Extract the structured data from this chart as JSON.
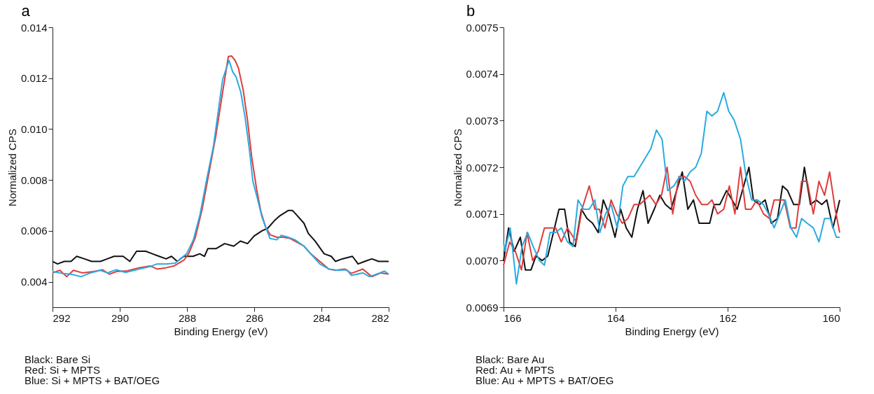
{
  "chart_data": [
    {
      "type": "line",
      "title": "a",
      "xlabel": "Binding Energy (eV)",
      "ylabel": "Normalized CPS",
      "xlim": [
        292,
        282
      ],
      "xticks": [
        292,
        290,
        288,
        286,
        284,
        282
      ],
      "ylim": [
        0.003,
        0.014
      ],
      "yticks": [
        0.004,
        0.006,
        0.008,
        {
          "value": 0.01,
          "label": "0.010"
        },
        0.012,
        0.014
      ],
      "grid": false,
      "legend": false,
      "line_style": "solid",
      "marker": "none",
      "annotations": [
        "Black: Bare Si",
        "Red: Si + MPTS",
        "Blue: Si + MPTS + BAT/OEG"
      ],
      "series": [
        {
          "color": "#111111",
          "x": [
            292.0,
            291.85,
            291.65,
            291.45,
            291.28,
            291.05,
            290.84,
            290.57,
            290.37,
            290.17,
            289.9,
            289.7,
            289.5,
            289.23,
            289.03,
            288.83,
            288.62,
            288.46,
            288.29,
            288.09,
            287.82,
            287.62,
            287.48,
            287.38,
            287.14,
            286.88,
            286.61,
            286.41,
            286.2,
            286.0,
            285.77,
            285.6,
            285.4,
            285.23,
            284.99,
            284.86,
            284.72,
            284.52,
            284.39,
            284.19,
            283.92,
            283.71,
            283.58,
            283.38,
            283.08,
            282.91,
            282.71,
            282.5,
            282.3,
            282.0
          ],
          "values": [
            0.0048,
            0.0047,
            0.0048,
            0.0048,
            0.005,
            0.0049,
            0.0048,
            0.0048,
            0.0049,
            0.005,
            0.005,
            0.0048,
            0.0052,
            0.0052,
            0.0051,
            0.005,
            0.0049,
            0.005,
            0.0048,
            0.005,
            0.005,
            0.0051,
            0.005,
            0.0053,
            0.0053,
            0.0055,
            0.0054,
            0.0056,
            0.0055,
            0.0058,
            0.006,
            0.0061,
            0.0064,
            0.0066,
            0.0068,
            0.0068,
            0.0066,
            0.0063,
            0.0059,
            0.0056,
            0.0051,
            0.005,
            0.0048,
            0.0049,
            0.005,
            0.0047,
            0.0048,
            0.0049,
            0.0048,
            0.0048
          ]
        },
        {
          "color": "#e03b3b",
          "x": [
            292.0,
            291.78,
            291.58,
            291.38,
            291.11,
            290.78,
            290.51,
            290.31,
            290.1,
            289.77,
            289.43,
            289.09,
            288.89,
            288.62,
            288.39,
            288.22,
            288.09,
            287.95,
            287.75,
            287.55,
            287.35,
            287.14,
            286.94,
            286.77,
            286.67,
            286.57,
            286.47,
            286.33,
            286.2,
            286.07,
            285.93,
            285.8,
            285.66,
            285.53,
            285.33,
            285.13,
            284.93,
            284.72,
            284.52,
            284.32,
            284.05,
            283.78,
            283.58,
            283.31,
            283.11,
            282.77,
            282.5,
            282.23,
            282.0
          ],
          "values": [
            0.00435,
            0.00445,
            0.0042,
            0.00445,
            0.00435,
            0.0044,
            0.00447,
            0.0043,
            0.0044,
            0.00443,
            0.00455,
            0.00462,
            0.0045,
            0.00455,
            0.00462,
            0.00475,
            0.00485,
            0.0051,
            0.00575,
            0.00685,
            0.00825,
            0.00975,
            0.01145,
            0.01285,
            0.01287,
            0.0127,
            0.0124,
            0.01155,
            0.01035,
            0.00885,
            0.00765,
            0.00675,
            0.00615,
            0.00585,
            0.00575,
            0.00575,
            0.0057,
            0.00555,
            0.0054,
            0.0051,
            0.0048,
            0.0045,
            0.00445,
            0.0045,
            0.00433,
            0.0045,
            0.0042,
            0.00435,
            0.0043
          ]
        },
        {
          "color": "#29abe2",
          "x": [
            292.0,
            291.72,
            291.45,
            291.15,
            290.91,
            290.58,
            290.37,
            290.1,
            289.83,
            289.43,
            289.09,
            288.89,
            288.62,
            288.35,
            288.15,
            288.01,
            287.81,
            287.61,
            287.41,
            287.21,
            286.94,
            286.75,
            286.64,
            286.54,
            286.4,
            286.27,
            286.14,
            286.04,
            285.9,
            285.77,
            285.66,
            285.53,
            285.33,
            285.19,
            284.99,
            284.79,
            284.52,
            284.25,
            284.05,
            283.78,
            283.51,
            283.24,
            283.11,
            282.77,
            282.57,
            282.3,
            282.13,
            282.0
          ],
          "values": [
            0.0044,
            0.00433,
            0.0043,
            0.0042,
            0.00433,
            0.00445,
            0.00435,
            0.00447,
            0.00437,
            0.0045,
            0.0046,
            0.0047,
            0.0047,
            0.00473,
            0.00495,
            0.0051,
            0.00565,
            0.00665,
            0.00805,
            0.00935,
            0.01195,
            0.0127,
            0.01225,
            0.01205,
            0.01145,
            0.01045,
            0.00915,
            0.00795,
            0.00725,
            0.00655,
            0.00615,
            0.0057,
            0.00565,
            0.00583,
            0.00575,
            0.00565,
            0.0054,
            0.005,
            0.0047,
            0.0045,
            0.00445,
            0.00447,
            0.00425,
            0.00435,
            0.0042,
            0.00433,
            0.00442,
            0.0043
          ]
        }
      ]
    },
    {
      "type": "line",
      "title": "b",
      "xlabel": "Binding Energy (eV)",
      "ylabel": "Normalized CPS",
      "xlim": [
        166,
        160
      ],
      "xticks": [
        166,
        164,
        162,
        160
      ],
      "ylim": [
        0.0069,
        0.0075
      ],
      "yticks": [
        0.0069,
        {
          "value": 0.007,
          "label": "0.0070"
        },
        0.0071,
        0.0072,
        0.0073,
        0.0074,
        0.0075
      ],
      "grid": false,
      "legend": false,
      "line_style": "solid",
      "marker": "none",
      "annotations": [
        "Black: Bare Au",
        "Red: Au + MPTS",
        "Blue: Au + MPTS + BAT/OEG"
      ],
      "series": [
        {
          "color": "#111111",
          "x": [
            166.0,
            165.91,
            165.81,
            165.7,
            165.61,
            165.51,
            165.42,
            165.31,
            165.21,
            165.11,
            165.01,
            164.91,
            164.82,
            164.72,
            164.61,
            164.51,
            164.41,
            164.31,
            164.22,
            164.12,
            164.01,
            163.91,
            163.81,
            163.71,
            163.61,
            163.51,
            163.42,
            163.31,
            163.21,
            163.11,
            163.01,
            162.81,
            162.71,
            162.61,
            162.51,
            162.41,
            162.32,
            162.24,
            162.14,
            162.02,
            161.92,
            161.83,
            161.62,
            161.54,
            161.43,
            161.33,
            161.22,
            161.11,
            161.02,
            160.93,
            160.82,
            160.72,
            160.63,
            160.52,
            160.42,
            160.32,
            160.23,
            160.12,
            160.0
          ],
          "values": [
            0.007,
            0.00707,
            0.00702,
            0.00705,
            0.00698,
            0.00698,
            0.00701,
            0.007,
            0.00701,
            0.00706,
            0.00711,
            0.00711,
            0.00704,
            0.00703,
            0.00711,
            0.00709,
            0.00708,
            0.00706,
            0.00713,
            0.0071,
            0.00705,
            0.00711,
            0.00707,
            0.00705,
            0.00711,
            0.00715,
            0.00708,
            0.00711,
            0.00714,
            0.00712,
            0.00711,
            0.00719,
            0.00711,
            0.00713,
            0.00708,
            0.00708,
            0.00708,
            0.00712,
            0.00712,
            0.00715,
            0.00713,
            0.00711,
            0.0072,
            0.00713,
            0.00712,
            0.00713,
            0.00708,
            0.00709,
            0.00716,
            0.00715,
            0.00712,
            0.00712,
            0.0072,
            0.00712,
            0.00713,
            0.00712,
            0.00713,
            0.00707,
            0.00713
          ]
        },
        {
          "color": "#e03b3b",
          "x": [
            166.0,
            165.89,
            165.79,
            165.68,
            165.58,
            165.48,
            165.38,
            165.27,
            165.07,
            164.97,
            164.86,
            164.7,
            164.6,
            164.47,
            164.37,
            164.29,
            164.19,
            164.08,
            163.98,
            163.88,
            163.78,
            163.67,
            163.57,
            163.39,
            163.28,
            163.18,
            163.08,
            162.98,
            162.87,
            162.77,
            162.67,
            162.57,
            162.46,
            162.36,
            162.28,
            162.18,
            162.07,
            161.97,
            161.87,
            161.77,
            161.68,
            161.58,
            161.48,
            161.36,
            161.25,
            161.17,
            161.09,
            160.99,
            160.88,
            160.78,
            160.68,
            160.58,
            160.47,
            160.37,
            160.27,
            160.18,
            160.08,
            160.0
          ],
          "values": [
            0.00699,
            0.00704,
            0.00702,
            0.00698,
            0.00706,
            0.007,
            0.00702,
            0.00707,
            0.00707,
            0.00704,
            0.00707,
            0.00704,
            0.00711,
            0.00716,
            0.00711,
            0.00711,
            0.00707,
            0.00713,
            0.0071,
            0.00708,
            0.00709,
            0.00712,
            0.00712,
            0.00714,
            0.00712,
            0.00714,
            0.0072,
            0.0071,
            0.00718,
            0.00718,
            0.00717,
            0.00714,
            0.00712,
            0.00712,
            0.00713,
            0.0071,
            0.00711,
            0.00716,
            0.0071,
            0.0072,
            0.00711,
            0.00711,
            0.00713,
            0.0071,
            0.00709,
            0.00713,
            0.00713,
            0.00713,
            0.00707,
            0.00707,
            0.00717,
            0.00717,
            0.0071,
            0.00717,
            0.00714,
            0.00719,
            0.00711,
            0.00706
          ]
        },
        {
          "color": "#29abe2",
          "x": [
            166.0,
            165.98,
            165.88,
            165.77,
            165.67,
            165.57,
            165.47,
            165.36,
            165.27,
            165.17,
            165.07,
            164.97,
            164.86,
            164.76,
            164.67,
            164.57,
            164.47,
            164.37,
            164.28,
            164.18,
            164.08,
            163.97,
            163.87,
            163.78,
            163.67,
            163.57,
            163.47,
            163.37,
            163.27,
            163.17,
            163.07,
            162.96,
            162.86,
            162.77,
            162.67,
            162.57,
            162.47,
            162.37,
            162.28,
            162.18,
            162.07,
            161.98,
            161.88,
            161.77,
            161.67,
            161.57,
            161.47,
            161.36,
            161.27,
            161.17,
            161.07,
            160.97,
            160.87,
            160.77,
            160.68,
            160.58,
            160.47,
            160.37,
            160.27,
            160.17,
            160.06,
            160.0
          ],
          "values": [
            0.00704,
            0.00702,
            0.00707,
            0.00695,
            0.00703,
            0.00706,
            0.00703,
            0.007,
            0.00699,
            0.00706,
            0.00706,
            0.00707,
            0.00704,
            0.00703,
            0.00713,
            0.00711,
            0.00711,
            0.00713,
            0.00706,
            0.0071,
            0.00712,
            0.00707,
            0.00716,
            0.00718,
            0.00718,
            0.0072,
            0.00722,
            0.00724,
            0.00728,
            0.00726,
            0.00715,
            0.00716,
            0.00718,
            0.00717,
            0.00719,
            0.0072,
            0.00723,
            0.00732,
            0.00731,
            0.00732,
            0.00736,
            0.00732,
            0.0073,
            0.00726,
            0.00718,
            0.00713,
            0.00713,
            0.00712,
            0.0071,
            0.00707,
            0.0071,
            0.00713,
            0.00707,
            0.00705,
            0.00709,
            0.00708,
            0.00707,
            0.00704,
            0.00709,
            0.00709,
            0.00705,
            0.00705
          ]
        }
      ]
    }
  ]
}
